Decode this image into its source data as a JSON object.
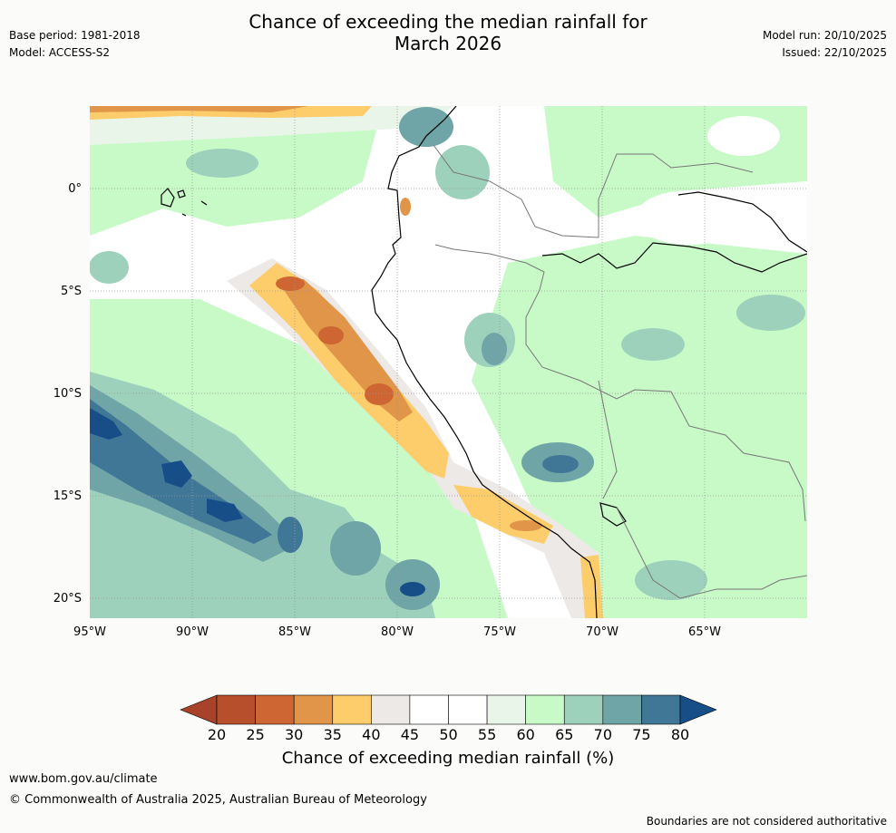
{
  "header": {
    "title_line1": "Chance of exceeding the median rainfall for",
    "title_line2": "March 2026",
    "base_period": "Base period: 1981-2018",
    "model": "Model: ACCESS-S2",
    "model_run": "Model run: 20/10/2025",
    "issued": "Issued: 22/10/2025"
  },
  "map": {
    "lat_labels": [
      "0°",
      "5°S",
      "10°S",
      "15°S",
      "20°S"
    ],
    "lon_labels": [
      "95°W",
      "90°W",
      "85°W",
      "80°W",
      "75°W",
      "70°W",
      "65°W"
    ],
    "lat_values": [
      0,
      -5,
      -10,
      -15,
      -20
    ],
    "lon_values": [
      -95,
      -90,
      -85,
      -80,
      -75,
      -70,
      -65
    ],
    "extent": {
      "lon_min": -95,
      "lon_max": -60,
      "lat_min": -21,
      "lat_max": 4
    }
  },
  "colorbar": {
    "ticks": [
      "20",
      "25",
      "30",
      "35",
      "40",
      "45",
      "50",
      "55",
      "60",
      "65",
      "70",
      "75",
      "80"
    ],
    "colors": [
      "#a8432a",
      "#b74e2c",
      "#cd6632",
      "#e09548",
      "#fdcc6b",
      "#ece9e6",
      "#ffffff",
      "#ffffff",
      "#eaf5ea",
      "#c8fac8",
      "#9dd1bc",
      "#6fa5a6",
      "#417796",
      "#174e87"
    ],
    "label": "Chance of exceeding median rainfall (%)"
  },
  "footer": {
    "url": "www.bom.gov.au/climate",
    "copyright": "© Commonwealth of Australia 2025, Australian Bureau of Meteorology",
    "disclaimer": "Boundaries are not considered authoritative"
  }
}
